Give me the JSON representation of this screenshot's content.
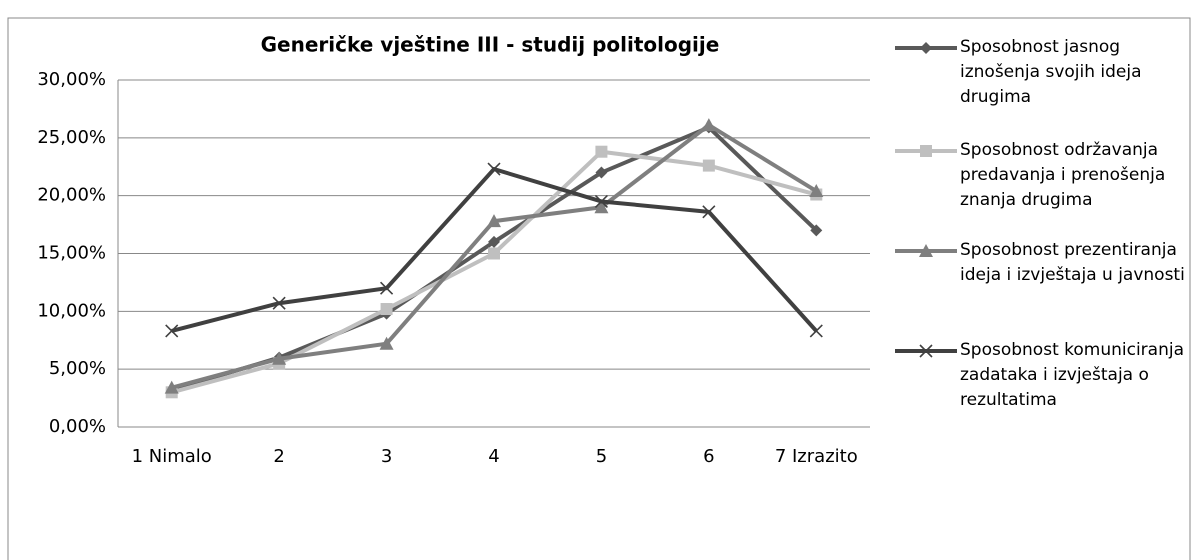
{
  "chart_data": {
    "type": "line",
    "title": "Generičke vještine III -  studij politologije",
    "categories": [
      "1 Nimalo",
      "2",
      "3",
      "4",
      "5",
      "6",
      "7 Izrazito"
    ],
    "series": [
      {
        "name": "Sposobnost jasnog iznošenja svojih ideja drugima",
        "color": "#595959",
        "marker": "diamond",
        "values": [
          3.2,
          6.0,
          9.8,
          16.0,
          22.0,
          25.9,
          17.0
        ]
      },
      {
        "name": "Sposobnost održavanja predavanja i prenošenja znanja drugima",
        "color": "#bfbfbf",
        "marker": "square",
        "values": [
          3.0,
          5.5,
          10.2,
          15.0,
          23.8,
          22.6,
          20.1
        ]
      },
      {
        "name": "Sposobnost prezentiranja ideja i izvještaja u javnosti",
        "color": "#7f7f7f",
        "marker": "triangle",
        "values": [
          3.4,
          5.9,
          7.2,
          17.8,
          19.0,
          26.1,
          20.4
        ]
      },
      {
        "name": "Sposobnost komuniciranja zadataka i izvještaja o rezultatima",
        "color": "#404040",
        "marker": "x",
        "values": [
          8.3,
          10.7,
          12.0,
          22.3,
          19.5,
          18.6,
          8.3
        ]
      }
    ],
    "ylim": [
      0,
      30
    ],
    "yticks": [
      {
        "value": 0,
        "label": "0,00%"
      },
      {
        "value": 5,
        "label": "5,00%"
      },
      {
        "value": 10,
        "label": "10,00%"
      },
      {
        "value": 15,
        "label": "15,00%"
      },
      {
        "value": 20,
        "label": "20,00%"
      },
      {
        "value": 25,
        "label": "25,00%"
      },
      {
        "value": 30,
        "label": "30,00%"
      }
    ],
    "grid": true,
    "legend": "right"
  }
}
